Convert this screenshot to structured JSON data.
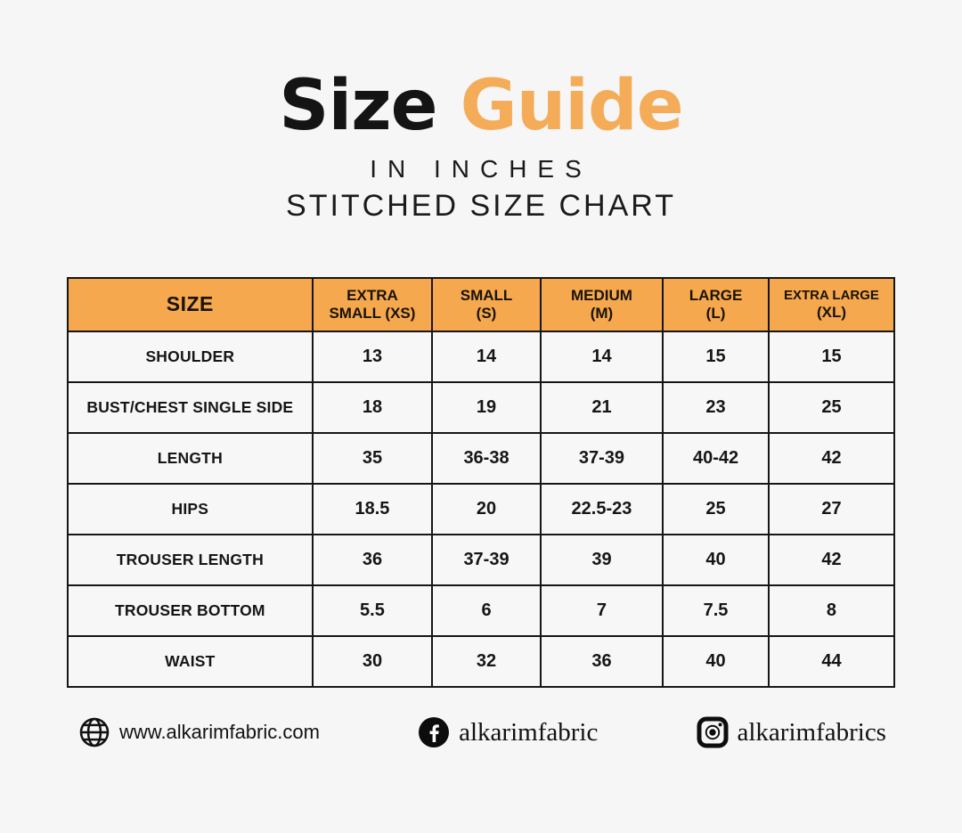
{
  "header": {
    "title_black": "Size",
    "title_orange": "Guide",
    "subtitle_line1": "IN INCHES",
    "subtitle_line2": "STITCHED SIZE CHART"
  },
  "chart_data": {
    "type": "table",
    "title": "Size Guide",
    "subtitle": "IN INCHES — STITCHED SIZE CHART",
    "unit": "inches",
    "size_header": "SIZE",
    "column_headers": [
      {
        "line1": "EXTRA",
        "line2": "SMALL (XS)"
      },
      {
        "line1": "SMALL",
        "line2": "(S)"
      },
      {
        "line1": "MEDIUM",
        "line2": "(M)"
      },
      {
        "line1": "LARGE",
        "line2": "(L)"
      },
      {
        "line1": "EXTRA LARGE",
        "line2": "(XL)"
      }
    ],
    "rows": [
      {
        "label": "SHOULDER",
        "values": [
          "13",
          "14",
          "14",
          "15",
          "15"
        ]
      },
      {
        "label": "BUST/CHEST SINGLE SIDE",
        "values": [
          "18",
          "19",
          "21",
          "23",
          "25"
        ]
      },
      {
        "label": "LENGTH",
        "values": [
          "35",
          "36-38",
          "37-39",
          "40-42",
          "42"
        ]
      },
      {
        "label": "HIPS",
        "values": [
          "18.5",
          "20",
          "22.5-23",
          "25",
          "27"
        ]
      },
      {
        "label": "TROUSER LENGTH",
        "values": [
          "36",
          "37-39",
          "39",
          "40",
          "42"
        ]
      },
      {
        "label": "TROUSER BOTTOM",
        "values": [
          "5.5",
          "6",
          "7",
          "7.5",
          "8"
        ]
      },
      {
        "label": "WAIST",
        "values": [
          "30",
          "32",
          "36",
          "40",
          "44"
        ]
      }
    ]
  },
  "footer": {
    "website": {
      "icon": "globe-icon",
      "text": "www.alkarimfabric.com"
    },
    "facebook": {
      "icon": "facebook-icon",
      "text": "alkarimfabric"
    },
    "instagram": {
      "icon": "instagram-icon",
      "text": "alkarimfabrics"
    }
  },
  "colors": {
    "accent_header_orange": "#F5A84D",
    "accent_title_orange": "#F4AC58",
    "text_black": "#161616",
    "background": "#F6F6F7",
    "table_border": "#161616"
  }
}
